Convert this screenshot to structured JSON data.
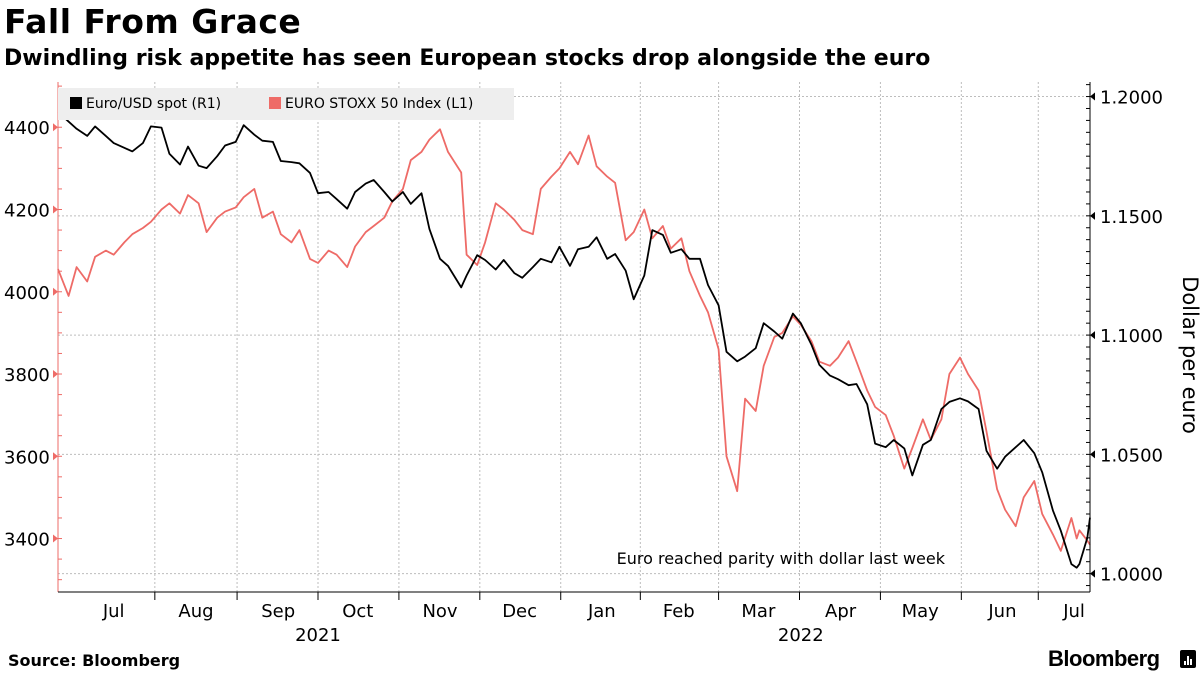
{
  "title": "Fall From Grace",
  "subtitle": "Dwindling risk appetite has seen European stocks drop alongside the euro",
  "source": "Source: Bloomberg",
  "brand": "Bloomberg",
  "colors": {
    "euro_usd": "#000000",
    "stoxx": "#ee6b67",
    "grid": "#bdbdbd",
    "legend_bg": "#eeeeee"
  },
  "chart_data": {
    "type": "line",
    "x_range": [
      "2021-06-25",
      "2022-07-19"
    ],
    "month_ticks": [
      {
        "label": "Jul",
        "date": "2021-07-16"
      },
      {
        "label": "Aug",
        "date": "2021-08-16"
      },
      {
        "label": "Sep",
        "date": "2021-09-16"
      },
      {
        "label": "Oct",
        "date": "2021-10-16"
      },
      {
        "label": "Nov",
        "date": "2021-11-16"
      },
      {
        "label": "Dec",
        "date": "2021-12-16"
      },
      {
        "label": "Jan",
        "date": "2022-01-16"
      },
      {
        "label": "Feb",
        "date": "2022-02-14"
      },
      {
        "label": "Mar",
        "date": "2022-03-16"
      },
      {
        "label": "Apr",
        "date": "2022-04-16"
      },
      {
        "label": "May",
        "date": "2022-05-16"
      },
      {
        "label": "Jun",
        "date": "2022-06-16"
      },
      {
        "label": "Jul",
        "date": "2022-07-13"
      }
    ],
    "year_labels": [
      {
        "label": "2021",
        "date": "2021-10-01"
      },
      {
        "label": "2022",
        "date": "2022-04-01"
      }
    ],
    "left_axis": {
      "label": "",
      "ylim": [
        3270,
        4510
      ],
      "ticks": [
        3400,
        3600,
        3800,
        4000,
        4200,
        4400
      ]
    },
    "right_axis": {
      "label": "Dollar per euro",
      "ylim": [
        0.9923,
        1.2061
      ],
      "ticks": [
        "1.0000",
        "1.0500",
        "1.1000",
        "1.1500",
        "1.2000"
      ]
    },
    "legend": {
      "placement": "top-left",
      "entries": [
        "Euro/USD spot (R1)",
        "EURO STOXX 50 Index (L1)"
      ]
    },
    "annotation": "Euro reached parity with dollar last week",
    "grid": true,
    "series": [
      {
        "name": "Euro/USD spot (R1)",
        "axis": "right",
        "points": [
          [
            "2021-06-25",
            1.1935
          ],
          [
            "2021-07-02",
            1.1865
          ],
          [
            "2021-07-06",
            1.1835
          ],
          [
            "2021-07-09",
            1.1875
          ],
          [
            "2021-07-13",
            1.1835
          ],
          [
            "2021-07-16",
            1.1805
          ],
          [
            "2021-07-20",
            1.1785
          ],
          [
            "2021-07-23",
            1.177
          ],
          [
            "2021-07-27",
            1.1805
          ],
          [
            "2021-07-30",
            1.1875
          ],
          [
            "2021-08-03",
            1.187
          ],
          [
            "2021-08-06",
            1.176
          ],
          [
            "2021-08-10",
            1.1715
          ],
          [
            "2021-08-13",
            1.179
          ],
          [
            "2021-08-17",
            1.171
          ],
          [
            "2021-08-20",
            1.17
          ],
          [
            "2021-08-24",
            1.175
          ],
          [
            "2021-08-27",
            1.1795
          ],
          [
            "2021-08-31",
            1.181
          ],
          [
            "2021-09-03",
            1.188
          ],
          [
            "2021-09-07",
            1.184
          ],
          [
            "2021-09-10",
            1.1815
          ],
          [
            "2021-09-14",
            1.181
          ],
          [
            "2021-09-17",
            1.173
          ],
          [
            "2021-09-21",
            1.1725
          ],
          [
            "2021-09-24",
            1.172
          ],
          [
            "2021-09-28",
            1.168
          ],
          [
            "2021-10-01",
            1.1595
          ],
          [
            "2021-10-05",
            1.16
          ],
          [
            "2021-10-08",
            1.157
          ],
          [
            "2021-10-12",
            1.153
          ],
          [
            "2021-10-15",
            1.16
          ],
          [
            "2021-10-19",
            1.1635
          ],
          [
            "2021-10-22",
            1.165
          ],
          [
            "2021-10-26",
            1.16
          ],
          [
            "2021-10-29",
            1.156
          ],
          [
            "2021-11-02",
            1.16
          ],
          [
            "2021-11-05",
            1.155
          ],
          [
            "2021-11-09",
            1.1595
          ],
          [
            "2021-11-12",
            1.1445
          ],
          [
            "2021-11-16",
            1.132
          ],
          [
            "2021-11-19",
            1.129
          ],
          [
            "2021-11-24",
            1.12
          ],
          [
            "2021-11-26",
            1.125
          ],
          [
            "2021-11-30",
            1.1335
          ],
          [
            "2021-12-03",
            1.1315
          ],
          [
            "2021-12-07",
            1.1275
          ],
          [
            "2021-12-10",
            1.1315
          ],
          [
            "2021-12-14",
            1.126
          ],
          [
            "2021-12-17",
            1.124
          ],
          [
            "2021-12-21",
            1.1285
          ],
          [
            "2021-12-24",
            1.132
          ],
          [
            "2021-12-28",
            1.1305
          ],
          [
            "2021-12-31",
            1.137
          ],
          [
            "2022-01-04",
            1.129
          ],
          [
            "2022-01-07",
            1.136
          ],
          [
            "2022-01-11",
            1.137
          ],
          [
            "2022-01-14",
            1.141
          ],
          [
            "2022-01-18",
            1.132
          ],
          [
            "2022-01-21",
            1.134
          ],
          [
            "2022-01-25",
            1.127
          ],
          [
            "2022-01-28",
            1.115
          ],
          [
            "2022-02-01",
            1.125
          ],
          [
            "2022-02-04",
            1.144
          ],
          [
            "2022-02-08",
            1.142
          ],
          [
            "2022-02-11",
            1.1345
          ],
          [
            "2022-02-15",
            1.136
          ],
          [
            "2022-02-18",
            1.132
          ],
          [
            "2022-02-22",
            1.132
          ],
          [
            "2022-02-25",
            1.121
          ],
          [
            "2022-03-01",
            1.1125
          ],
          [
            "2022-03-04",
            1.093
          ],
          [
            "2022-03-08",
            1.089
          ],
          [
            "2022-03-11",
            1.091
          ],
          [
            "2022-03-15",
            1.0945
          ],
          [
            "2022-03-18",
            1.105
          ],
          [
            "2022-03-22",
            1.1015
          ],
          [
            "2022-03-25",
            1.0985
          ],
          [
            "2022-03-29",
            1.109
          ],
          [
            "2022-04-01",
            1.105
          ],
          [
            "2022-04-05",
            1.096
          ],
          [
            "2022-04-08",
            1.0875
          ],
          [
            "2022-04-12",
            1.083
          ],
          [
            "2022-04-15",
            1.0815
          ],
          [
            "2022-04-19",
            1.079
          ],
          [
            "2022-04-22",
            1.0795
          ],
          [
            "2022-04-26",
            1.071
          ],
          [
            "2022-04-29",
            1.0545
          ],
          [
            "2022-05-03",
            1.053
          ],
          [
            "2022-05-06",
            1.056
          ],
          [
            "2022-05-10",
            1.0525
          ],
          [
            "2022-05-13",
            1.0412
          ],
          [
            "2022-05-17",
            1.054
          ],
          [
            "2022-05-20",
            1.056
          ],
          [
            "2022-05-24",
            1.069
          ],
          [
            "2022-05-27",
            1.072
          ],
          [
            "2022-05-31",
            1.0735
          ],
          [
            "2022-06-03",
            1.0722
          ],
          [
            "2022-06-07",
            1.069
          ],
          [
            "2022-06-10",
            1.0515
          ],
          [
            "2022-06-14",
            1.044
          ],
          [
            "2022-06-17",
            1.049
          ],
          [
            "2022-06-21",
            1.053
          ],
          [
            "2022-06-24",
            1.056
          ],
          [
            "2022-06-28",
            1.0505
          ],
          [
            "2022-07-01",
            1.0425
          ],
          [
            "2022-07-05",
            1.0265
          ],
          [
            "2022-07-08",
            1.018
          ],
          [
            "2022-07-12",
            1.004
          ],
          [
            "2022-07-14",
            1.0025
          ],
          [
            "2022-07-15",
            1.004
          ],
          [
            "2022-07-18",
            1.015
          ],
          [
            "2022-07-19",
            1.0235
          ]
        ]
      },
      {
        "name": "EURO STOXX 50 Index (L1)",
        "axis": "left",
        "points": [
          [
            "2021-06-25",
            4055
          ],
          [
            "2021-06-29",
            3990
          ],
          [
            "2021-07-02",
            4060
          ],
          [
            "2021-07-06",
            4025
          ],
          [
            "2021-07-09",
            4085
          ],
          [
            "2021-07-13",
            4100
          ],
          [
            "2021-07-16",
            4090
          ],
          [
            "2021-07-20",
            4120
          ],
          [
            "2021-07-23",
            4140
          ],
          [
            "2021-07-27",
            4155
          ],
          [
            "2021-07-30",
            4170
          ],
          [
            "2021-08-03",
            4200
          ],
          [
            "2021-08-06",
            4215
          ],
          [
            "2021-08-10",
            4190
          ],
          [
            "2021-08-13",
            4235
          ],
          [
            "2021-08-17",
            4215
          ],
          [
            "2021-08-20",
            4145
          ],
          [
            "2021-08-24",
            4180
          ],
          [
            "2021-08-27",
            4195
          ],
          [
            "2021-08-31",
            4205
          ],
          [
            "2021-09-03",
            4230
          ],
          [
            "2021-09-07",
            4250
          ],
          [
            "2021-09-10",
            4180
          ],
          [
            "2021-09-14",
            4195
          ],
          [
            "2021-09-17",
            4140
          ],
          [
            "2021-09-21",
            4120
          ],
          [
            "2021-09-24",
            4150
          ],
          [
            "2021-09-28",
            4080
          ],
          [
            "2021-10-01",
            4070
          ],
          [
            "2021-10-05",
            4100
          ],
          [
            "2021-10-08",
            4090
          ],
          [
            "2021-10-12",
            4060
          ],
          [
            "2021-10-15",
            4110
          ],
          [
            "2021-10-19",
            4145
          ],
          [
            "2021-10-22",
            4160
          ],
          [
            "2021-10-26",
            4180
          ],
          [
            "2021-10-29",
            4220
          ],
          [
            "2021-11-02",
            4250
          ],
          [
            "2021-11-05",
            4320
          ],
          [
            "2021-11-09",
            4340
          ],
          [
            "2021-11-12",
            4370
          ],
          [
            "2021-11-16",
            4395
          ],
          [
            "2021-11-19",
            4340
          ],
          [
            "2021-11-24",
            4290
          ],
          [
            "2021-11-26",
            4090
          ],
          [
            "2021-11-30",
            4065
          ],
          [
            "2021-12-03",
            4120
          ],
          [
            "2021-12-07",
            4215
          ],
          [
            "2021-12-10",
            4200
          ],
          [
            "2021-12-14",
            4175
          ],
          [
            "2021-12-17",
            4150
          ],
          [
            "2021-12-21",
            4140
          ],
          [
            "2021-12-24",
            4250
          ],
          [
            "2021-12-28",
            4280
          ],
          [
            "2021-12-31",
            4300
          ],
          [
            "2022-01-04",
            4340
          ],
          [
            "2022-01-07",
            4310
          ],
          [
            "2022-01-11",
            4380
          ],
          [
            "2022-01-14",
            4305
          ],
          [
            "2022-01-18",
            4280
          ],
          [
            "2022-01-21",
            4265
          ],
          [
            "2022-01-25",
            4125
          ],
          [
            "2022-01-28",
            4145
          ],
          [
            "2022-02-01",
            4200
          ],
          [
            "2022-02-04",
            4130
          ],
          [
            "2022-02-08",
            4160
          ],
          [
            "2022-02-11",
            4105
          ],
          [
            "2022-02-15",
            4130
          ],
          [
            "2022-02-18",
            4050
          ],
          [
            "2022-02-22",
            3990
          ],
          [
            "2022-02-25",
            3950
          ],
          [
            "2022-03-01",
            3860
          ],
          [
            "2022-03-04",
            3600
          ],
          [
            "2022-03-08",
            3515
          ],
          [
            "2022-03-11",
            3740
          ],
          [
            "2022-03-15",
            3710
          ],
          [
            "2022-03-18",
            3820
          ],
          [
            "2022-03-22",
            3890
          ],
          [
            "2022-03-25",
            3900
          ],
          [
            "2022-03-29",
            3940
          ],
          [
            "2022-04-01",
            3920
          ],
          [
            "2022-04-05",
            3880
          ],
          [
            "2022-04-08",
            3830
          ],
          [
            "2022-04-12",
            3820
          ],
          [
            "2022-04-15",
            3840
          ],
          [
            "2022-04-19",
            3880
          ],
          [
            "2022-04-22",
            3830
          ],
          [
            "2022-04-26",
            3760
          ],
          [
            "2022-04-29",
            3720
          ],
          [
            "2022-05-03",
            3700
          ],
          [
            "2022-05-06",
            3650
          ],
          [
            "2022-05-10",
            3570
          ],
          [
            "2022-05-13",
            3620
          ],
          [
            "2022-05-17",
            3690
          ],
          [
            "2022-05-20",
            3640
          ],
          [
            "2022-05-24",
            3690
          ],
          [
            "2022-05-27",
            3800
          ],
          [
            "2022-05-31",
            3840
          ],
          [
            "2022-06-03",
            3800
          ],
          [
            "2022-06-07",
            3760
          ],
          [
            "2022-06-10",
            3660
          ],
          [
            "2022-06-14",
            3520
          ],
          [
            "2022-06-17",
            3470
          ],
          [
            "2022-06-21",
            3430
          ],
          [
            "2022-06-24",
            3500
          ],
          [
            "2022-06-28",
            3540
          ],
          [
            "2022-07-01",
            3460
          ],
          [
            "2022-07-05",
            3410
          ],
          [
            "2022-07-08",
            3370
          ],
          [
            "2022-07-12",
            3450
          ],
          [
            "2022-07-14",
            3400
          ],
          [
            "2022-07-15",
            3420
          ],
          [
            "2022-07-18",
            3395
          ],
          [
            "2022-07-19",
            3385
          ]
        ]
      }
    ]
  }
}
